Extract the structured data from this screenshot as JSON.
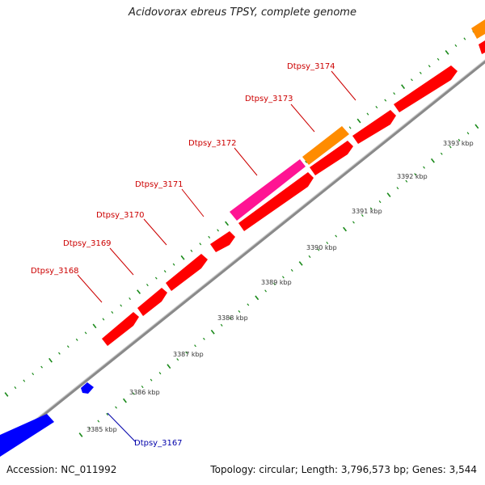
{
  "title": "Acidovorax ebreus TPSY, complete genome",
  "footer": {
    "accession": "Accession: NC_011992",
    "summary": "Topology: circular; Length: 3,796,573 bp; Genes: 3,544"
  },
  "colors": {
    "forward_gene": "#ff0000",
    "reverse_gene": "#0000ff",
    "pink_gene": "#ff1493",
    "orange_gene": "#ff8c00",
    "backbone": "#8a8a8a",
    "tick": "#1a8a1a",
    "forward_label": "#cc0000",
    "reverse_label": "#0000aa"
  },
  "gene_labels": [
    {
      "name": "Dtpsy_3168",
      "strand": "forward"
    },
    {
      "name": "Dtpsy_3169",
      "strand": "forward"
    },
    {
      "name": "Dtpsy_3170",
      "strand": "forward"
    },
    {
      "name": "Dtpsy_3171",
      "strand": "forward"
    },
    {
      "name": "Dtpsy_3172",
      "strand": "forward"
    },
    {
      "name": "Dtpsy_3173",
      "strand": "forward"
    },
    {
      "name": "Dtpsy_3174",
      "strand": "forward"
    },
    {
      "name": "Dtpsy_3167",
      "strand": "reverse"
    }
  ],
  "kbp_ticks": [
    "3385 kbp",
    "3386 kbp",
    "3387 kbp",
    "3388 kbp",
    "3389 kbp",
    "3390 kbp",
    "3391 kbp",
    "3392 kbp",
    "3393 kbp"
  ]
}
